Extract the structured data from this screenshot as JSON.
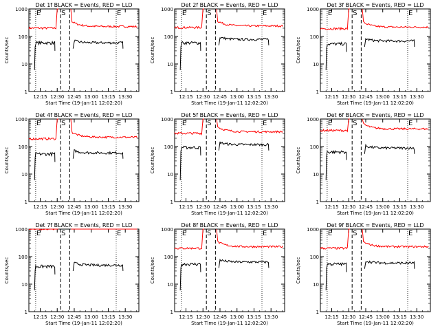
{
  "colors": {
    "events": "#000000",
    "lld": "#ff0000",
    "axis": "#000000",
    "background": "#ffffff"
  },
  "chart_data": [
    {
      "type": "line",
      "title": "Det 1f BLACK = Events, RED = LLD",
      "xlabel": "Start Time (19-Jan-11 12:02:20)",
      "ylabel": "Counts/sec",
      "y_scale": "log",
      "ylim": [
        1,
        1000
      ],
      "xlim": [
        "12:05",
        "13:42"
      ],
      "xticks": [
        "12:15",
        "12:30",
        "12:45",
        "13:00",
        "13:15",
        "13:30"
      ],
      "yticks": [
        "1",
        "10",
        "100",
        "1000"
      ],
      "markers": [
        "E",
        "S",
        "E"
      ],
      "lld_level": 200,
      "events_level": 60,
      "events_after": 60
    },
    {
      "type": "line",
      "title": "Det 2f BLACK = Events, RED = LLD",
      "xlabel": "Start Time (19-Jan-11 12:02:20)",
      "ylabel": "Counts/sec",
      "y_scale": "log",
      "ylim": [
        1,
        1000
      ],
      "xlim": [
        "12:05",
        "13:42"
      ],
      "xticks": [
        "12:15",
        "12:30",
        "12:45",
        "13:00",
        "13:15",
        "13:30"
      ],
      "yticks": [
        "1",
        "10",
        "100",
        "1000"
      ],
      "markers": [
        "E",
        "S",
        "E"
      ],
      "lld_level": 210,
      "events_level": 60,
      "events_after": 80
    },
    {
      "type": "line",
      "title": "Det 3f BLACK = Events, RED = LLD",
      "xlabel": "Start Time (19-Jan-11 12:02:20)",
      "ylabel": "Counts/sec",
      "y_scale": "log",
      "ylim": [
        1,
        1000
      ],
      "xlim": [
        "12:05",
        "13:42"
      ],
      "xticks": [
        "12:15",
        "12:30",
        "12:45",
        "13:00",
        "13:15",
        "13:30"
      ],
      "yticks": [
        "1",
        "10",
        "100",
        "1000"
      ],
      "markers": [
        "E",
        "S",
        "E"
      ],
      "lld_level": 190,
      "events_level": 55,
      "events_after": 70
    },
    {
      "type": "line",
      "title": "Det 4f BLACK = Events, RED = LLD",
      "xlabel": "Start Time (19-Jan-11 12:02:20)",
      "ylabel": "Counts/sec",
      "y_scale": "log",
      "ylim": [
        1,
        1000
      ],
      "xlim": [
        "12:05",
        "13:42"
      ],
      "xticks": [
        "12:15",
        "12:30",
        "12:45",
        "13:00",
        "13:15",
        "13:30"
      ],
      "yticks": [
        "1",
        "10",
        "100",
        "1000"
      ],
      "markers": [
        "E",
        "S",
        "E"
      ],
      "lld_level": 190,
      "events_level": 55,
      "events_after": 60
    },
    {
      "type": "line",
      "title": "Det 5f BLACK = Events, RED = LLD",
      "xlabel": "Start Time (19-Jan-11 12:02:20)",
      "ylabel": "Counts/sec",
      "y_scale": "log",
      "ylim": [
        1,
        1000
      ],
      "xlim": [
        "12:05",
        "13:42"
      ],
      "xticks": [
        "12:15",
        "12:30",
        "12:45",
        "13:00",
        "13:15",
        "13:30"
      ],
      "yticks": [
        "1",
        "10",
        "100",
        "1000"
      ],
      "markers": [
        "E",
        "S",
        "E"
      ],
      "lld_level": 300,
      "events_level": 95,
      "events_after": 120
    },
    {
      "type": "line",
      "title": "Det 6f BLACK = Events, RED = LLD",
      "xlabel": "Start Time (19-Jan-11 12:02:20)",
      "ylabel": "Counts/sec",
      "y_scale": "log",
      "ylim": [
        1,
        1000
      ],
      "xlim": [
        "12:05",
        "13:42"
      ],
      "xticks": [
        "12:15",
        "12:30",
        "12:45",
        "13:00",
        "13:15",
        "13:30"
      ],
      "yticks": [
        "1",
        "10",
        "100",
        "1000"
      ],
      "markers": [
        "E",
        "S",
        "E"
      ],
      "lld_level": 380,
      "events_level": 65,
      "events_after": 90
    },
    {
      "type": "line",
      "title": "Det 7f BLACK = Events, RED = LLD",
      "xlabel": "Start Time (19-Jan-11 12:02:20)",
      "ylabel": "Counts/sec",
      "y_scale": "log",
      "ylim": [
        1,
        1000
      ],
      "xlim": [
        "12:05",
        "13:42"
      ],
      "xticks": [
        "12:15",
        "12:30",
        "12:45",
        "13:00",
        "13:15",
        "13:30"
      ],
      "yticks": [
        "1",
        "10",
        "100",
        "1000"
      ],
      "markers": [
        "E",
        "S",
        "E"
      ],
      "lld_level": 1000,
      "events_level": 45,
      "events_after": 50
    },
    {
      "type": "line",
      "title": "Det 8f BLACK = Events, RED = LLD",
      "xlabel": "Start Time (19-Jan-11 12:02:20)",
      "ylabel": "Counts/sec",
      "y_scale": "log",
      "ylim": [
        1,
        1000
      ],
      "xlim": [
        "12:05",
        "13:42"
      ],
      "xticks": [
        "12:15",
        "12:30",
        "12:45",
        "13:00",
        "13:15",
        "13:30"
      ],
      "yticks": [
        "1",
        "10",
        "100",
        "1000"
      ],
      "markers": [
        "E",
        "S",
        "E"
      ],
      "lld_level": 200,
      "events_level": 55,
      "events_after": 65
    },
    {
      "type": "line",
      "title": "Det 9f BLACK = Events, RED = LLD",
      "xlabel": "Start Time (19-Jan-11 12:02:20)",
      "ylabel": "Counts/sec",
      "y_scale": "log",
      "ylim": [
        1,
        1000
      ],
      "xlim": [
        "12:05",
        "13:42"
      ],
      "xticks": [
        "12:15",
        "12:30",
        "12:45",
        "13:00",
        "13:15",
        "13:30"
      ],
      "yticks": [
        "1",
        "10",
        "100",
        "1000"
      ],
      "markers": [
        "E",
        "S",
        "E"
      ],
      "lld_level": 200,
      "events_level": 55,
      "events_after": 60
    }
  ]
}
